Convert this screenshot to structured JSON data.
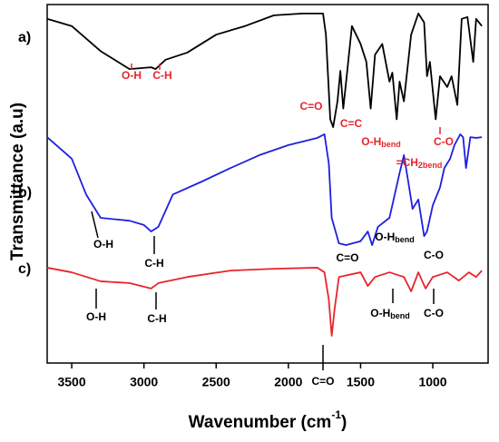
{
  "chart_data": {
    "type": "line",
    "xlabel": "Wavenumber (cm",
    "xlabel_sup": "-1",
    "xlabel_end": ")",
    "ylabel": "Transmittance (a.u)",
    "xlim": [
      3670,
      617
    ],
    "xticks": [
      3500,
      3000,
      2500,
      2000,
      1500,
      1000
    ],
    "ylim": [
      0,
      100
    ],
    "series": [
      {
        "name": "a)",
        "color": "#000000",
        "x": [
          3670,
          3500,
          3300,
          3100,
          2950,
          2920,
          2850,
          2700,
          2500,
          2300,
          2100,
          1900,
          1760,
          1740,
          1710,
          1690,
          1660,
          1640,
          1620,
          1600,
          1560,
          1500,
          1460,
          1430,
          1400,
          1350,
          1300,
          1280,
          1250,
          1230,
          1200,
          1150,
          1100,
          1060,
          1040,
          1020,
          980,
          950,
          900,
          870,
          830,
          800,
          760,
          720,
          700,
          660
        ],
        "values": [
          96,
          94,
          87,
          82,
          82.5,
          82,
          84.6,
          86.6,
          91.6,
          94,
          97,
          97.5,
          97.5,
          91.6,
          68,
          65.8,
          73,
          81.5,
          71,
          78.5,
          94,
          89,
          84,
          71,
          86,
          89,
          78.5,
          81,
          68,
          78.5,
          73,
          91.6,
          97.5,
          95,
          80,
          84,
          68,
          80,
          77,
          80,
          72,
          96,
          96.5,
          84,
          96,
          94
        ]
      },
      {
        "name": "b)",
        "color": "#1f1fe0",
        "x": [
          3670,
          3500,
          3400,
          3300,
          3100,
          3000,
          2950,
          2900,
          2800,
          2600,
          2400,
          2200,
          2000,
          1800,
          1750,
          1720,
          1700,
          1650,
          1600,
          1500,
          1450,
          1420,
          1380,
          1300,
          1230,
          1200,
          1170,
          1140,
          1100,
          1060,
          1040,
          1000,
          950,
          920,
          880,
          850,
          810,
          790,
          770,
          740,
          700,
          660
        ],
        "values": [
          63,
          57,
          47,
          40.5,
          39.7,
          38.5,
          36.7,
          38,
          47,
          50.6,
          54.4,
          58,
          60.8,
          62.8,
          63.8,
          55.7,
          40.5,
          33.4,
          32.9,
          34,
          36.7,
          32.9,
          38,
          40.5,
          53,
          58,
          50.6,
          43,
          45.6,
          35.4,
          36.7,
          44,
          49,
          54.4,
          57,
          60.8,
          63.8,
          63,
          54.4,
          63,
          62.8,
          63
        ]
      },
      {
        "name": "c)",
        "color": "#e8242b",
        "x": [
          3670,
          3500,
          3300,
          3100,
          2950,
          2900,
          2700,
          2400,
          2100,
          1800,
          1750,
          1720,
          1700,
          1680,
          1650,
          1500,
          1450,
          1400,
          1300,
          1200,
          1150,
          1100,
          1050,
          1000,
          900,
          820,
          750,
          700,
          660
        ],
        "values": [
          26.6,
          25.3,
          22.8,
          22.3,
          20.8,
          22.3,
          24,
          25.8,
          26.3,
          26.6,
          25.3,
          17.7,
          7.6,
          15,
          24,
          25.3,
          21.5,
          24,
          25.3,
          24,
          20,
          25.3,
          20.8,
          24,
          25.3,
          23,
          25.3,
          24,
          25.8
        ]
      }
    ],
    "annotations": [
      {
        "text": "O-H",
        "color": "#e8242b"
      },
      {
        "text": "C-H",
        "color": "#e8242b"
      },
      {
        "text": "C=O",
        "color": "#e8242b"
      },
      {
        "text": "C=C",
        "color": "#e8242b"
      },
      {
        "text": "O-H",
        "sub": "bend",
        "color": "#e8242b"
      },
      {
        "text": "=CH",
        "sub": "2bend",
        "color": "#e8242b"
      },
      {
        "text": "C-O",
        "color": "#e8242b"
      },
      {
        "text": "O-H",
        "color": "#000000"
      },
      {
        "text": "C-H",
        "color": "#000000"
      },
      {
        "text": "C=O",
        "color": "#000000"
      },
      {
        "text": "O-H",
        "sub": "bend",
        "color": "#000000"
      },
      {
        "text": "C-O",
        "color": "#000000"
      },
      {
        "text": "O-H",
        "color": "#000000"
      },
      {
        "text": "C-H",
        "color": "#000000"
      },
      {
        "text": "C=O",
        "color": "#000000"
      },
      {
        "text": "O-H",
        "sub": "bend",
        "color": "#000000"
      },
      {
        "text": "C-O",
        "color": "#000000"
      }
    ]
  }
}
